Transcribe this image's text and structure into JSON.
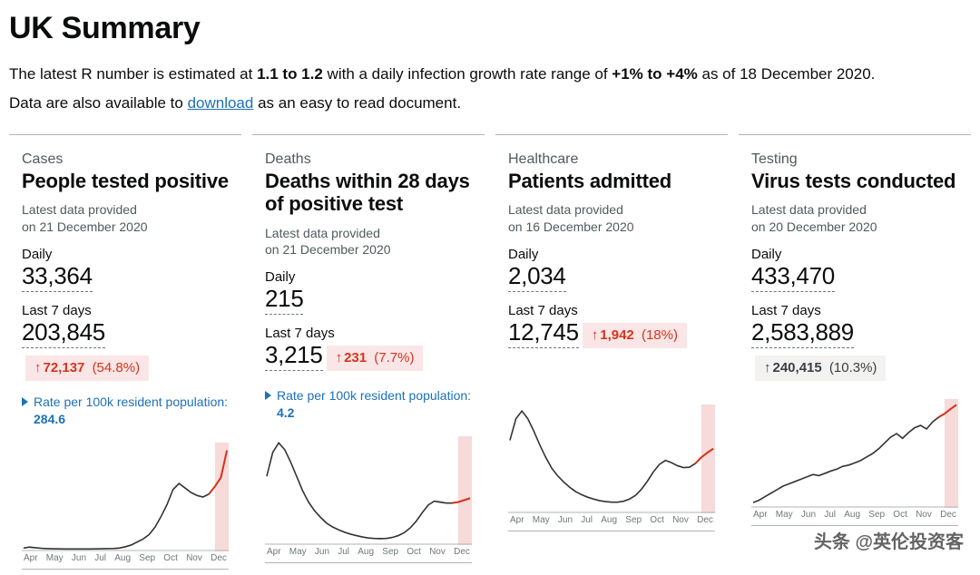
{
  "page": {
    "title": "UK Summary",
    "intro_prefix": "The latest R number is estimated at ",
    "r_number": "1.1 to 1.2",
    "intro_mid": " with a daily infection growth rate range of ",
    "growth_rate": "+1% to +4%",
    "intro_suffix": " as of 18 December 2020.",
    "intro2_prefix": "Data are also available to ",
    "download_label": "download",
    "intro2_suffix": " as an easy to read document."
  },
  "colors": {
    "text": "#0b0c0c",
    "muted": "#505a5f",
    "link": "#1d70b8",
    "line": "#333333",
    "highlight_bad_bg": "#fae6e6",
    "highlight_bad_fg": "#d4351c",
    "highlight_neutral_bg": "#f3f2f1",
    "highlight_neutral_fg": "#383f43",
    "chart_recent_fill": "#f7dada",
    "chart_recent_stroke": "#d4351c",
    "border": "#b1b4b6"
  },
  "month_labels": [
    "Apr",
    "May",
    "Jun",
    "Jul",
    "Aug",
    "Sep",
    "Oct",
    "Nov",
    "Dec"
  ],
  "cards": {
    "cases": {
      "category": "Cases",
      "title": "People tested positive",
      "sub1": "Latest data provided",
      "sub2": "on 21 December 2020",
      "daily_label": "Daily",
      "daily_value": "33,364",
      "l7_label": "Last 7 days",
      "l7_value": "203,845",
      "change_arrow": "↑",
      "change_value": "72,137",
      "change_pct": "(54.8%)",
      "change_style": "bad",
      "rate_label": "Rate per 100k resident population: ",
      "rate_value": "284.6",
      "chart": {
        "type": "line",
        "yrange": [
          0,
          35000
        ],
        "series": [
          500,
          800,
          600,
          400,
          300,
          250,
          220,
          200,
          190,
          180,
          180,
          200,
          220,
          250,
          300,
          350,
          500,
          900,
          1500,
          2500,
          3500,
          5000,
          7500,
          11000,
          15000,
          20000,
          22000,
          20500,
          19000,
          18000,
          17500,
          18500,
          21000,
          24000,
          33000
        ],
        "recent_points": 3
      }
    },
    "deaths": {
      "category": "Deaths",
      "title": "Deaths within 28 days of positive test",
      "sub1": "Latest data provided",
      "sub2": "on 21 December 2020",
      "daily_label": "Daily",
      "daily_value": "215",
      "l7_label": "Last 7 days",
      "l7_value": "3,215",
      "change_arrow": "↑",
      "change_value": "231",
      "change_pct": "(7.7%)",
      "change_style": "bad",
      "rate_label": "Rate per 100k resident population: ",
      "rate_value": "4.2",
      "chart": {
        "type": "line",
        "yrange": [
          0,
          1100
        ],
        "series": [
          700,
          950,
          1050,
          980,
          850,
          700,
          550,
          430,
          340,
          270,
          210,
          170,
          140,
          115,
          95,
          80,
          65,
          55,
          50,
          48,
          50,
          60,
          80,
          110,
          160,
          230,
          320,
          400,
          440,
          430,
          420,
          420,
          430,
          450,
          470
        ],
        "recent_points": 3
      }
    },
    "healthcare": {
      "category": "Healthcare",
      "title": "Patients admitted",
      "sub1": "Latest data provided",
      "sub2": "on 16 December 2020",
      "daily_label": "Daily",
      "daily_value": "2,034",
      "l7_label": "Last 7 days",
      "l7_value": "12,745",
      "change_arrow": "↑",
      "change_value": "1,942",
      "change_pct": "(18%)",
      "change_style": "bad",
      "chart": {
        "type": "line",
        "yrange": [
          0,
          3400
        ],
        "series": [
          2300,
          3000,
          3250,
          3000,
          2600,
          2150,
          1750,
          1400,
          1150,
          950,
          780,
          640,
          540,
          460,
          400,
          350,
          320,
          300,
          300,
          330,
          400,
          520,
          720,
          980,
          1280,
          1520,
          1650,
          1580,
          1480,
          1420,
          1430,
          1550,
          1750,
          1900,
          2030
        ],
        "recent_points": 3
      }
    },
    "testing": {
      "category": "Testing",
      "title": "Virus tests conducted",
      "sub1": "Latest data provided",
      "sub2": "on 20 December 2020",
      "daily_label": "Daily",
      "daily_value": "433,470",
      "l7_label": "Last 7 days",
      "l7_value": "2,583,889",
      "change_arrow": "↑",
      "change_value": "240,415",
      "change_pct": "(10.3%)",
      "change_style": "neutral",
      "chart": {
        "type": "line",
        "yrange": [
          0,
          450000
        ],
        "series": [
          15000,
          25000,
          40000,
          55000,
          70000,
          85000,
          95000,
          105000,
          115000,
          125000,
          135000,
          130000,
          140000,
          150000,
          158000,
          170000,
          175000,
          185000,
          195000,
          210000,
          225000,
          245000,
          270000,
          295000,
          310000,
          290000,
          315000,
          335000,
          345000,
          330000,
          360000,
          380000,
          395000,
          415000,
          433000
        ],
        "recent_points": 3
      }
    }
  },
  "watermark": "头条 @英伦投资客"
}
